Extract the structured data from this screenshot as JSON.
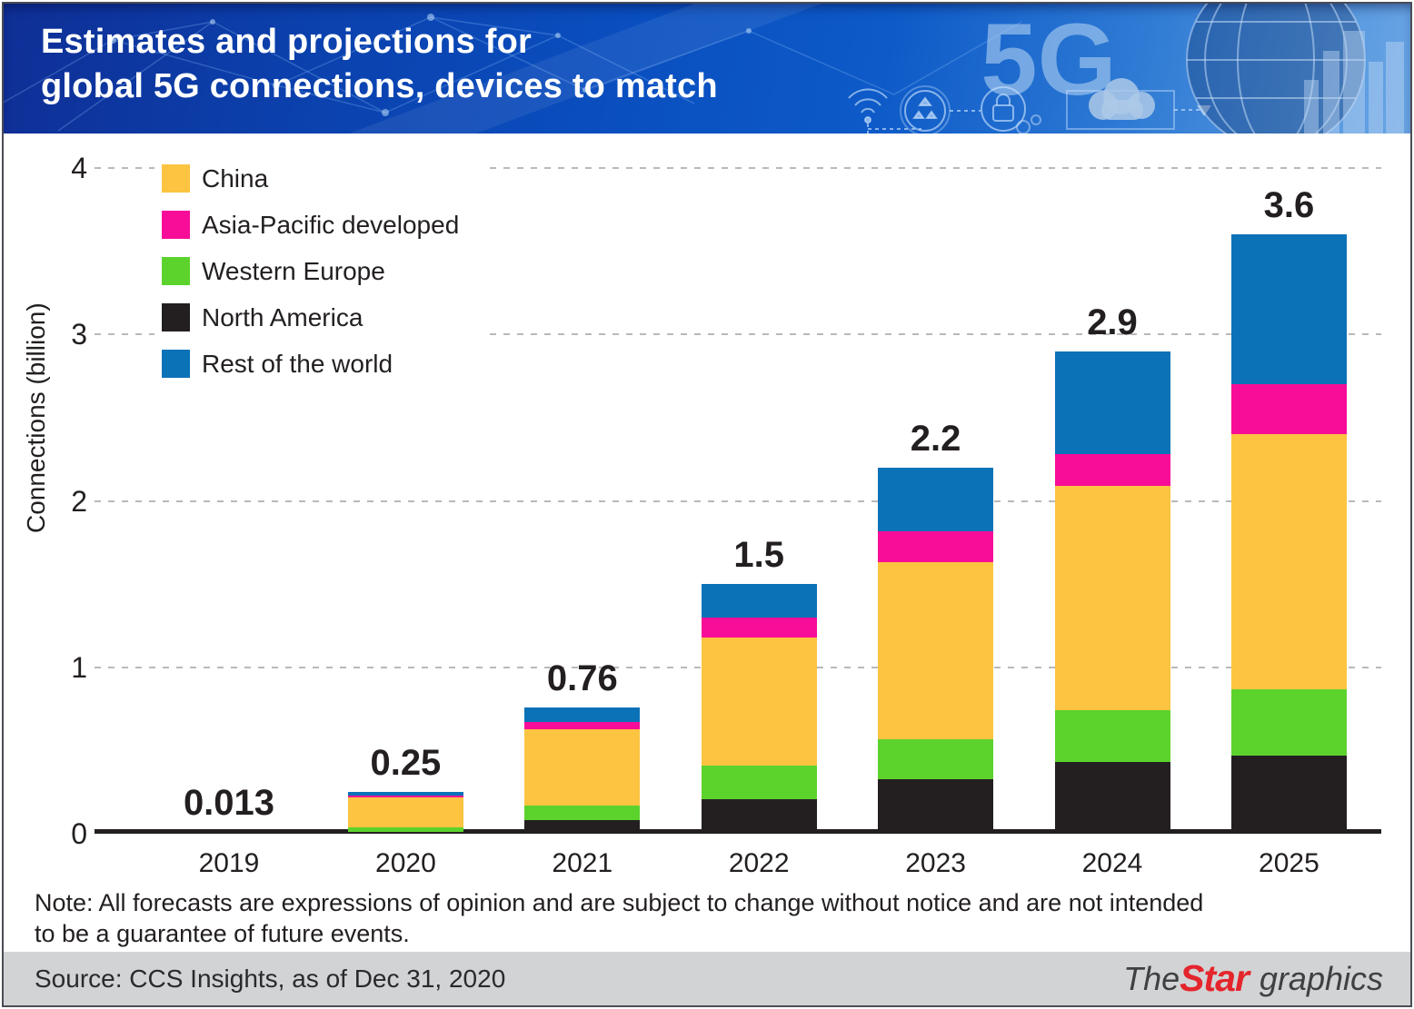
{
  "header": {
    "title_line1": "Estimates and projections for",
    "title_line2": "global 5G connections, devices to match",
    "watermark": "5G"
  },
  "chart_data": {
    "type": "bar",
    "stacked": true,
    "title": "Estimates and projections for global 5G connections, devices to match",
    "xlabel": "",
    "ylabel": "Connections (billion)",
    "ylim": [
      0,
      4
    ],
    "yticks": [
      0,
      1,
      2,
      3,
      4
    ],
    "grid": "horizontal-dashed",
    "legend_position": "top-left-inside",
    "categories": [
      "2019",
      "2020",
      "2021",
      "2022",
      "2023",
      "2024",
      "2025"
    ],
    "total_labels": [
      "0.013",
      "0.25",
      "0.76",
      "1.5",
      "2.2",
      "2.9",
      "3.6"
    ],
    "totals": [
      0.013,
      0.25,
      0.76,
      1.5,
      2.2,
      2.9,
      3.6
    ],
    "series": [
      {
        "name": "North America",
        "color": "#231f20",
        "values": [
          0.013,
          0.01,
          0.08,
          0.21,
          0.33,
          0.43,
          0.47
        ]
      },
      {
        "name": "Western Europe",
        "color": "#5cd32d",
        "values": [
          0,
          0.03,
          0.09,
          0.2,
          0.24,
          0.31,
          0.4
        ]
      },
      {
        "name": "China",
        "color": "#fcc440",
        "values": [
          0,
          0.18,
          0.46,
          0.77,
          1.06,
          1.35,
          1.53
        ]
      },
      {
        "name": "Asia-Pacific developed",
        "color": "#f80d98",
        "values": [
          0,
          0.01,
          0.04,
          0.12,
          0.19,
          0.19,
          0.3
        ]
      },
      {
        "name": "Rest of the world",
        "color": "#0b72b8",
        "values": [
          0,
          0.02,
          0.09,
          0.2,
          0.38,
          0.62,
          0.9
        ]
      }
    ],
    "legend_order": [
      "China",
      "Asia-Pacific developed",
      "Western Europe",
      "North America",
      "Rest of the world"
    ]
  },
  "note": {
    "text": "Note: All forecasts are expressions of opinion and are subject to change without notice and are not intended to be a guarantee of future events."
  },
  "footer": {
    "source": "Source: CCS Insights, as of Dec 31, 2020",
    "brand_the": "The",
    "brand_star": "Star",
    "brand_graphics": "graphics"
  }
}
